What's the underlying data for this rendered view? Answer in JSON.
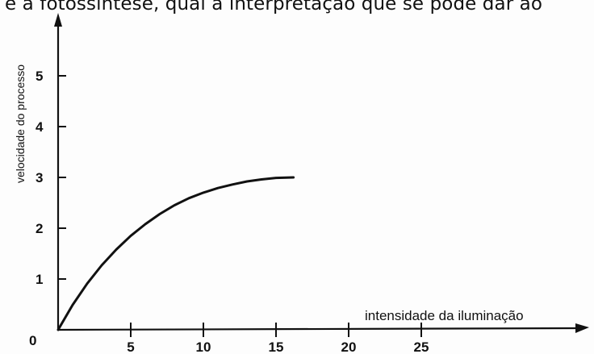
{
  "page": {
    "top_text": "e a fotossíntese, qual a interpretação que se pode dar ao"
  },
  "chart_data": {
    "type": "line",
    "title": "",
    "xlabel": "intensidade da iluminação",
    "ylabel": "velocidade do processo",
    "xlim": [
      0,
      36
    ],
    "ylim": [
      0,
      6.5
    ],
    "origin_label": "0",
    "x_ticks": [
      5,
      10,
      15,
      20,
      25
    ],
    "y_ticks": [
      1,
      2,
      3,
      4,
      5
    ],
    "x_tick_labels": [
      "5",
      "10",
      "15",
      "20",
      "25"
    ],
    "y_tick_labels": [
      "1",
      "2",
      "3",
      "4",
      "5"
    ],
    "grid": false,
    "series": [
      {
        "name": "",
        "x": [
          0,
          1,
          2,
          3,
          4,
          5,
          6,
          7,
          8,
          9,
          10,
          11,
          12,
          13,
          14,
          15,
          16.2
        ],
        "y": [
          0,
          0.49,
          0.91,
          1.27,
          1.58,
          1.85,
          2.08,
          2.28,
          2.45,
          2.59,
          2.7,
          2.79,
          2.86,
          2.92,
          2.96,
          2.99,
          3.0
        ]
      }
    ],
    "colors": {
      "line": "#111111",
      "axes": "#111111"
    }
  }
}
